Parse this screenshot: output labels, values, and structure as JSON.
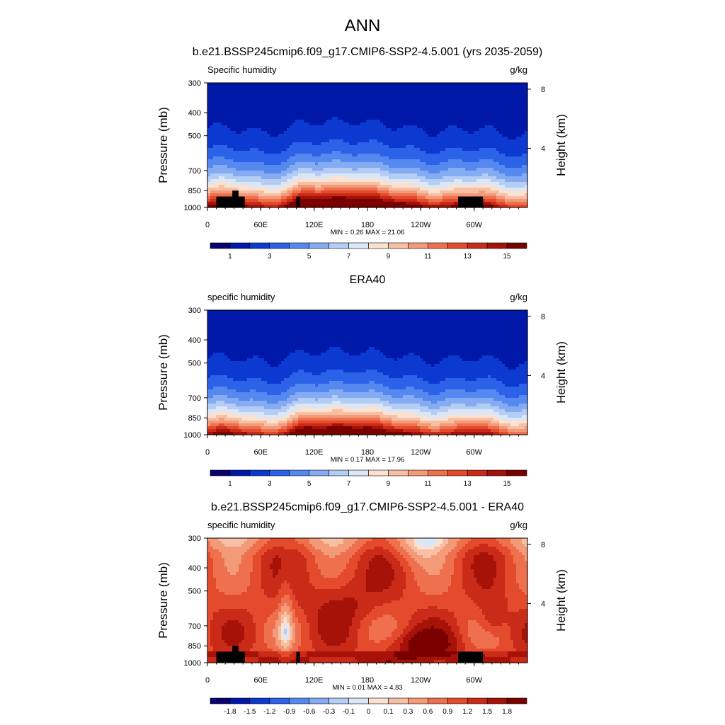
{
  "figure": {
    "title": "ANN"
  },
  "common": {
    "pressure_axis_label": "Pressure (mb)",
    "height_axis_label": "Height (km)",
    "units": "g/kg",
    "pressure_ticks": [
      "300",
      "400",
      "500",
      "700",
      "850",
      "1000"
    ],
    "longitude_ticks": [
      "0",
      "60E",
      "120E",
      "180",
      "120W",
      "60W"
    ],
    "height_ticks": [
      "8",
      "4"
    ]
  },
  "chart_data": [
    {
      "type": "heatmap",
      "title": "b.e21.BSSP245cmip6.f09_g17.CMIP6-SSP2-4.5.001 (yrs 2035-2059)",
      "left_label": "Specific humidity",
      "right_label": "g/kg",
      "xlabel": "",
      "ylabel": "Pressure (mb)",
      "y2label": "Height (km)",
      "stats_text": "MIN =   0.26  MAX =  21.06",
      "min": 0.26,
      "max": 21.06,
      "x_ticks": [
        "0",
        "60E",
        "120E",
        "180",
        "120W",
        "60W"
      ],
      "y_ticks": [
        300,
        400,
        500,
        700,
        850,
        1000
      ],
      "y2_ticks": [
        8,
        4
      ],
      "colorbar": {
        "levels": [
          0,
          1,
          2,
          3,
          4,
          5,
          6,
          7,
          8,
          9,
          10,
          11,
          12,
          13,
          14,
          15
        ],
        "labels": [
          "1",
          "3",
          "5",
          "7",
          "9",
          "11",
          "13",
          "15"
        ],
        "colors": [
          "#08006e",
          "#0018a8",
          "#0c3ad0",
          "#2c62e8",
          "#5689f0",
          "#85acf2",
          "#b4cdf4",
          "#dbe6f6",
          "#fbe2d0",
          "#f7c0a4",
          "#f39a78",
          "#ee704e",
          "#e44a2c",
          "#ca2a18",
          "#a61208",
          "#7a0000"
        ]
      }
    },
    {
      "type": "heatmap",
      "title": "ERA40",
      "left_label": "specific humidity",
      "right_label": "g/kg",
      "xlabel": "",
      "ylabel": "Pressure (mb)",
      "y2label": "Height (km)",
      "stats_text": "MIN =   0.17  MAX =  17.96",
      "min": 0.17,
      "max": 17.96,
      "x_ticks": [
        "0",
        "60E",
        "120E",
        "180",
        "120W",
        "60W"
      ],
      "y_ticks": [
        300,
        400,
        500,
        700,
        850,
        1000
      ],
      "y2_ticks": [
        8,
        4
      ],
      "colorbar": {
        "levels": [
          0,
          1,
          2,
          3,
          4,
          5,
          6,
          7,
          8,
          9,
          10,
          11,
          12,
          13,
          14,
          15
        ],
        "labels": [
          "1",
          "3",
          "5",
          "7",
          "9",
          "11",
          "13",
          "15"
        ],
        "colors": [
          "#08006e",
          "#0018a8",
          "#0c3ad0",
          "#2c62e8",
          "#5689f0",
          "#85acf2",
          "#b4cdf4",
          "#dbe6f6",
          "#fbe2d0",
          "#f7c0a4",
          "#f39a78",
          "#ee704e",
          "#e44a2c",
          "#ca2a18",
          "#a61208",
          "#7a0000"
        ]
      }
    },
    {
      "type": "heatmap",
      "title": "b.e21.BSSP245cmip6.f09_g17.CMIP6-SSP2-4.5.001 - ERA40",
      "left_label": "specific humidity",
      "right_label": "g/kg",
      "xlabel": "",
      "ylabel": "Pressure (mb)",
      "y2label": "Height (km)",
      "stats_text": "MIN =   0.01  MAX =   4.83",
      "min": 0.01,
      "max": 4.83,
      "x_ticks": [
        "0",
        "60E",
        "120E",
        "180",
        "120W",
        "60W"
      ],
      "y_ticks": [
        300,
        400,
        500,
        700,
        850,
        1000
      ],
      "y2_ticks": [
        8,
        4
      ],
      "colorbar": {
        "levels": [
          -1.8,
          -1.5,
          -1.2,
          -0.9,
          -0.6,
          -0.3,
          -0.1,
          0,
          0.1,
          0.3,
          0.6,
          0.9,
          1.2,
          1.5,
          1.8
        ],
        "labels": [
          "-1.8",
          "-1.5",
          "-1.2",
          "-0.9",
          "-0.6",
          "-0.3",
          "-0.1",
          "0",
          "0.1",
          "0.3",
          "0.6",
          "0.9",
          "1.2",
          "1.5",
          "1.8"
        ],
        "colors": [
          "#08006e",
          "#0018a8",
          "#0c3ad0",
          "#2c62e8",
          "#5689f0",
          "#85acf2",
          "#b4cdf4",
          "#dbe6f6",
          "#fbe2d0",
          "#f7c0a4",
          "#f39a78",
          "#ee704e",
          "#e44a2c",
          "#ca2a18",
          "#a61208",
          "#7a0000"
        ]
      }
    }
  ]
}
